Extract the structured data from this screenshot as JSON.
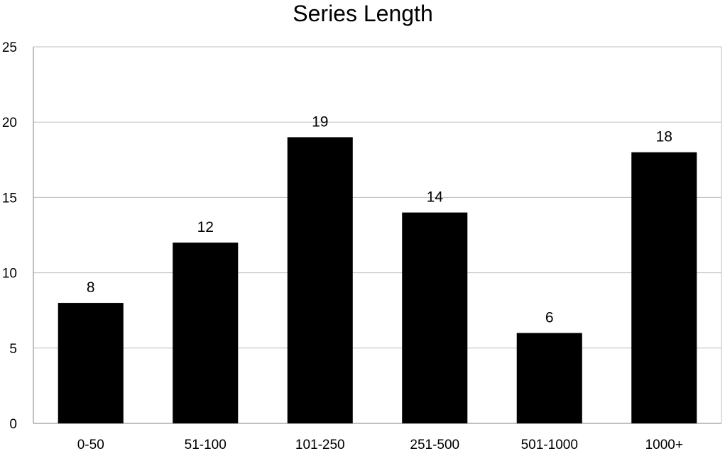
{
  "chart_data": {
    "type": "bar",
    "title": "Series Length",
    "xlabel": "",
    "ylabel": "",
    "categories": [
      "0-50",
      "51-100",
      "101-250",
      "251-500",
      "501-1000",
      "1000+"
    ],
    "values": [
      8,
      12,
      19,
      14,
      6,
      18
    ],
    "ylim": [
      0,
      25
    ],
    "yticks": [
      0,
      5,
      10,
      15,
      20,
      25
    ],
    "grid": true,
    "legend": "none",
    "data_labels": true,
    "colors": {
      "bar": "#000000",
      "grid": "#bfbfbf",
      "axis": "#808080",
      "text": "#000000"
    }
  }
}
